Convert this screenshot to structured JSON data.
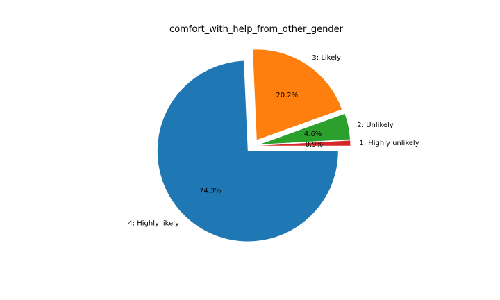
{
  "chart_data": {
    "type": "pie",
    "title": "comfort_with_help_from_other_gender",
    "categories": [
      "1: Highly unlikely",
      "2: Unlikely",
      "3: Likely",
      "4: Highly likely"
    ],
    "values": [
      0.9,
      4.6,
      20.2,
      74.3
    ],
    "percent_labels": [
      "0.9%",
      "4.6%",
      "20.2%",
      "74.3%"
    ],
    "colors": [
      "#d62728",
      "#2ca02c",
      "#ff7f0e",
      "#1f77b4"
    ],
    "exploded": true,
    "start_angle_deg": 0,
    "direction": "counterclockwise"
  }
}
